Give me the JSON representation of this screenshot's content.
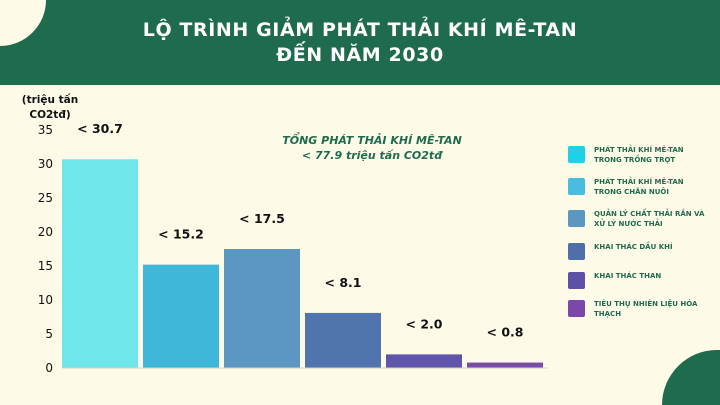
{
  "header": {
    "title_line1": "LỘ TRÌNH GIẢM PHÁT THẢI KHÍ MÊ-TAN",
    "title_line2": "ĐẾN NĂM 2030",
    "color": "#1f6b4e"
  },
  "total": {
    "line1": "TỔNG PHÁT THẢI KHÍ MÊ-TAN",
    "line2": "< 77.9 triệu tấn CO2tđ"
  },
  "chart_data": {
    "type": "bar",
    "ylabel_line1": "(triệu tấn",
    "ylabel_line2": "CO2tđ)",
    "ylim": [
      0,
      35
    ],
    "yticks": [
      0,
      5,
      10,
      15,
      20,
      25,
      30,
      35
    ],
    "grid": false,
    "legend_position": "right",
    "categories": [
      "PHÁT THẢI KHÍ MÊ-TAN TRONG TRỒNG TRỌT",
      "PHÁT THẢI KHÍ MÊ-TAN TRONG CHĂN NUÔI",
      "QUẢN LÝ CHẤT THẢI RẮN VÀ XỬ LÝ NƯỚC THẢI",
      "KHAI THÁC DẦU KHÍ",
      "KHAI THÁC THAN",
      "TIÊU THỤ NHIÊN LIỆU HÓA THẠCH"
    ],
    "values": [
      30.7,
      15.2,
      17.5,
      8.1,
      2.0,
      0.8
    ],
    "data_labels": [
      "< 30.7",
      "< 15.2",
      "< 17.5",
      "< 8.1",
      "< 2.0",
      "< 0.8"
    ],
    "bar_colors": [
      "#6ee6ea",
      "#3fb7d8",
      "#5b97c0",
      "#4f74ae",
      "#5f55ab",
      "#7b4ba8"
    ],
    "legend_colors": [
      "#1ad3e8",
      "#48bde0",
      "#5b97c0",
      "#4f6eaa",
      "#5e50a6",
      "#7b47a8"
    ]
  }
}
